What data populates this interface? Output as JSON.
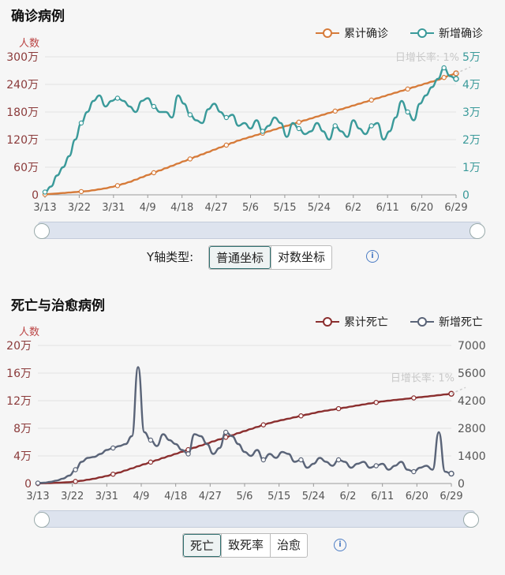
{
  "chart1": {
    "title": "确诊病例",
    "legend": [
      {
        "name": "累计确诊",
        "color": "#d67b3a"
      },
      {
        "name": "新增确诊",
        "color": "#3a9a9a"
      }
    ],
    "left_unit": "人数",
    "annotation": "日增长率: 1%",
    "yaxis_type_label": "Y轴类型:",
    "buttons": [
      "普通坐标",
      "对数坐标"
    ]
  },
  "chart2": {
    "title": "死亡与治愈病例",
    "legend": [
      {
        "name": "累计死亡",
        "color": "#8b2f2f"
      },
      {
        "name": "新增死亡",
        "color": "#5a6478"
      }
    ],
    "left_unit": "人数",
    "annotation": "日增长率: 1%",
    "buttons": [
      "死亡",
      "致死率",
      "治愈"
    ]
  },
  "chart_data": [
    {
      "type": "line",
      "title": "确诊病例",
      "x_ticks": [
        "3/13",
        "3/22",
        "3/31",
        "4/9",
        "4/18",
        "4/27",
        "5/6",
        "5/15",
        "5/24",
        "6/2",
        "6/11",
        "6/20",
        "6/29"
      ],
      "left_axis": {
        "label": "人数",
        "ticks": [
          "0",
          "60万",
          "120万",
          "180万",
          "240万",
          "300万"
        ],
        "range": [
          0,
          300
        ]
      },
      "right_axis": {
        "ticks": [
          "0",
          "1万",
          "2万",
          "3万",
          "4万",
          "5万"
        ],
        "range": [
          0,
          5
        ]
      },
      "series": [
        {
          "name": "累计确诊",
          "axis": "left",
          "color": "#d67b3a",
          "values": [
            1,
            2,
            3,
            4,
            5,
            6,
            7,
            8,
            10,
            12,
            14,
            17,
            20,
            24,
            28,
            33,
            38,
            43,
            48,
            53,
            58,
            63,
            68,
            73,
            78,
            83,
            88,
            93,
            98,
            103,
            108,
            113,
            118,
            122,
            126,
            130,
            134,
            138,
            142,
            146,
            150,
            154,
            158,
            162,
            166,
            170,
            174,
            178,
            182,
            186,
            190,
            194,
            198,
            202,
            206,
            210,
            214,
            218,
            222,
            226,
            230,
            234,
            238,
            242,
            246,
            250,
            255,
            260,
            264
          ]
        },
        {
          "name": "新增确诊",
          "axis": "right",
          "color": "#3a9a9a",
          "values": [
            0.1,
            0.3,
            0.7,
            1.0,
            1.4,
            2.0,
            2.6,
            3.0,
            3.4,
            3.6,
            3.2,
            3.4,
            3.5,
            3.4,
            3.2,
            3.0,
            3.4,
            3.5,
            3.2,
            3.0,
            3.0,
            2.8,
            3.6,
            3.3,
            2.9,
            2.7,
            2.6,
            3.1,
            3.3,
            3.0,
            2.8,
            2.9,
            2.5,
            2.6,
            2.4,
            2.7,
            2.3,
            2.5,
            2.8,
            2.6,
            2.1,
            2.6,
            2.4,
            2.2,
            2.3,
            2.6,
            2.3,
            2.0,
            2.5,
            2.3,
            2.1,
            2.7,
            2.4,
            2.2,
            2.5,
            2.6,
            2.0,
            2.3,
            2.8,
            3.4,
            3.0,
            2.7,
            3.3,
            3.6,
            3.9,
            4.2,
            4.6,
            4.3,
            4.2
          ]
        }
      ]
    },
    {
      "type": "line",
      "title": "死亡与治愈病例",
      "x_ticks": [
        "3/13",
        "3/22",
        "3/31",
        "4/9",
        "4/18",
        "4/27",
        "5/6",
        "5/15",
        "5/24",
        "6/2",
        "6/11",
        "6/20",
        "6/29"
      ],
      "left_axis": {
        "label": "人数",
        "ticks": [
          "0",
          "4万",
          "8万",
          "12万",
          "16万",
          "20万"
        ],
        "range": [
          0,
          20
        ]
      },
      "right_axis": {
        "ticks": [
          "0",
          "1400",
          "2800",
          "4200",
          "5600",
          "7000"
        ],
        "range": [
          0,
          7000
        ]
      },
      "series": [
        {
          "name": "累计死亡",
          "axis": "left",
          "color": "#8b2f2f",
          "values": [
            0.01,
            0.03,
            0.06,
            0.1,
            0.15,
            0.2,
            0.3,
            0.4,
            0.55,
            0.7,
            0.9,
            1.1,
            1.35,
            1.6,
            1.9,
            2.2,
            2.5,
            2.8,
            3.1,
            3.4,
            3.7,
            4.0,
            4.3,
            4.6,
            4.9,
            5.2,
            5.5,
            5.8,
            6.1,
            6.4,
            6.7,
            7.0,
            7.3,
            7.6,
            7.9,
            8.2,
            8.5,
            8.75,
            9.0,
            9.2,
            9.4,
            9.6,
            9.8,
            10.0,
            10.2,
            10.4,
            10.55,
            10.7,
            10.85,
            11.0,
            11.15,
            11.3,
            11.45,
            11.6,
            11.75,
            11.9,
            12.0,
            12.1,
            12.2,
            12.3,
            12.4,
            12.5,
            12.6,
            12.7,
            12.8,
            12.9,
            13.0
          ]
        },
        {
          "name": "新增死亡",
          "axis": "right",
          "color": "#5a6478",
          "values": [
            20,
            40,
            80,
            150,
            250,
            400,
            700,
            1100,
            1300,
            1350,
            1500,
            1700,
            1800,
            1900,
            2000,
            2400,
            5900,
            2600,
            2200,
            1900,
            2500,
            2200,
            2000,
            1700,
            1500,
            2500,
            2400,
            2000,
            1500,
            1800,
            2600,
            2400,
            2000,
            1600,
            1400,
            1700,
            1200,
            1500,
            1300,
            1600,
            1500,
            1100,
            1200,
            800,
            1000,
            1300,
            1100,
            900,
            1200,
            1100,
            800,
            1000,
            1100,
            800,
            900,
            1000,
            700,
            900,
            1100,
            700,
            600,
            800,
            900,
            700,
            2600,
            600,
            500
          ]
        }
      ]
    }
  ]
}
